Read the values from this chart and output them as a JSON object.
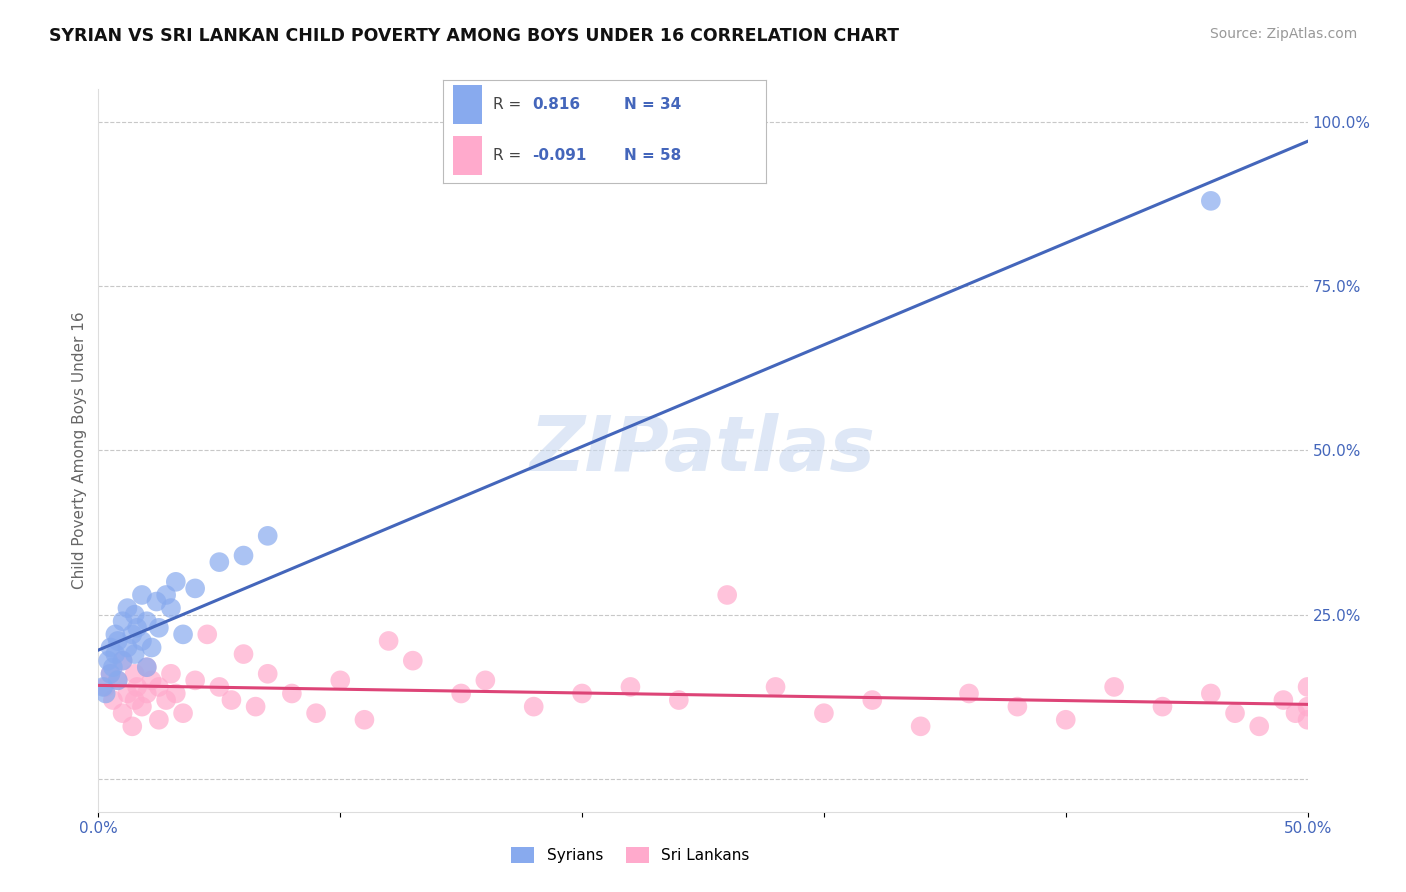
{
  "title": "SYRIAN VS SRI LANKAN CHILD POVERTY AMONG BOYS UNDER 16 CORRELATION CHART",
  "source": "Source: ZipAtlas.com",
  "ylabel": "Child Poverty Among Boys Under 16",
  "xlabel": "",
  "xlim": [
    0.0,
    0.5
  ],
  "ylim": [
    -0.05,
    1.05
  ],
  "xticks": [
    0.0,
    0.1,
    0.2,
    0.3,
    0.4,
    0.5
  ],
  "xticklabels": [
    "0.0%",
    "",
    "",
    "",
    "",
    "50.0%"
  ],
  "ytick_positions": [
    0.0,
    0.25,
    0.5,
    0.75,
    1.0
  ],
  "yticklabels_right": [
    "",
    "25.0%",
    "50.0%",
    "75.0%",
    "100.0%"
  ],
  "grid_color": "#c8c8c8",
  "background_color": "#ffffff",
  "watermark": "ZIPatlas",
  "syrians_R": 0.816,
  "syrians_N": 34,
  "srilankans_R": -0.091,
  "srilankans_N": 58,
  "blue_color": "#88aaee",
  "pink_color": "#ffaacc",
  "line_blue": "#4466bb",
  "line_pink": "#dd4477",
  "syrians_x": [
    0.002,
    0.003,
    0.004,
    0.005,
    0.005,
    0.006,
    0.007,
    0.007,
    0.008,
    0.008,
    0.01,
    0.01,
    0.012,
    0.012,
    0.014,
    0.015,
    0.015,
    0.016,
    0.018,
    0.018,
    0.02,
    0.02,
    0.022,
    0.024,
    0.025,
    0.028,
    0.03,
    0.032,
    0.035,
    0.04,
    0.05,
    0.06,
    0.07,
    0.46
  ],
  "syrians_y": [
    0.14,
    0.13,
    0.18,
    0.16,
    0.2,
    0.17,
    0.19,
    0.22,
    0.15,
    0.21,
    0.18,
    0.24,
    0.2,
    0.26,
    0.22,
    0.19,
    0.25,
    0.23,
    0.21,
    0.28,
    0.17,
    0.24,
    0.2,
    0.27,
    0.23,
    0.28,
    0.26,
    0.3,
    0.22,
    0.29,
    0.33,
    0.34,
    0.37,
    0.88
  ],
  "srilankans_x": [
    0.003,
    0.005,
    0.006,
    0.008,
    0.01,
    0.01,
    0.012,
    0.014,
    0.015,
    0.015,
    0.016,
    0.018,
    0.02,
    0.02,
    0.022,
    0.025,
    0.025,
    0.028,
    0.03,
    0.032,
    0.035,
    0.04,
    0.045,
    0.05,
    0.055,
    0.06,
    0.065,
    0.07,
    0.08,
    0.09,
    0.1,
    0.11,
    0.12,
    0.13,
    0.15,
    0.16,
    0.18,
    0.2,
    0.22,
    0.24,
    0.26,
    0.28,
    0.3,
    0.32,
    0.34,
    0.36,
    0.38,
    0.4,
    0.42,
    0.44,
    0.46,
    0.47,
    0.48,
    0.49,
    0.495,
    0.5,
    0.5,
    0.5
  ],
  "srilankans_y": [
    0.14,
    0.16,
    0.12,
    0.15,
    0.1,
    0.18,
    0.13,
    0.08,
    0.16,
    0.12,
    0.14,
    0.11,
    0.17,
    0.13,
    0.15,
    0.09,
    0.14,
    0.12,
    0.16,
    0.13,
    0.1,
    0.15,
    0.22,
    0.14,
    0.12,
    0.19,
    0.11,
    0.16,
    0.13,
    0.1,
    0.15,
    0.09,
    0.21,
    0.18,
    0.13,
    0.15,
    0.11,
    0.13,
    0.14,
    0.12,
    0.28,
    0.14,
    0.1,
    0.12,
    0.08,
    0.13,
    0.11,
    0.09,
    0.14,
    0.11,
    0.13,
    0.1,
    0.08,
    0.12,
    0.1,
    0.09,
    0.11,
    0.14
  ]
}
